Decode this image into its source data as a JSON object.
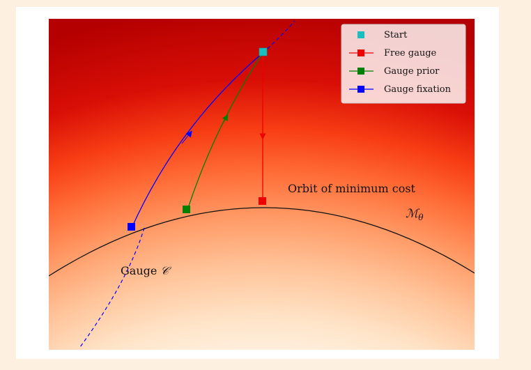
{
  "annotations": {
    "orbit_label": "Orbit of minimum cost",
    "manifold_symbol": "ℳ",
    "manifold_subscript": "θ",
    "gauge_label": "Gauge ",
    "gauge_symbol": "𝒞"
  },
  "legend": {
    "placement": "top-right",
    "items": [
      {
        "label": "Start",
        "color": "#19bfbf",
        "style": "marker"
      },
      {
        "label": "Free gauge",
        "color": "#ee0000",
        "style": "line-marker"
      },
      {
        "label": "Gauge prior",
        "color": "#008000",
        "style": "line-marker"
      },
      {
        "label": "Gauge fixation",
        "color": "#0000ff",
        "style": "line-marker"
      }
    ]
  },
  "colors": {
    "background_light": "#fff2e4",
    "background_dark": "#c40000",
    "orbit_curve": "#111111",
    "gauge_curve": "#0000ff"
  }
}
